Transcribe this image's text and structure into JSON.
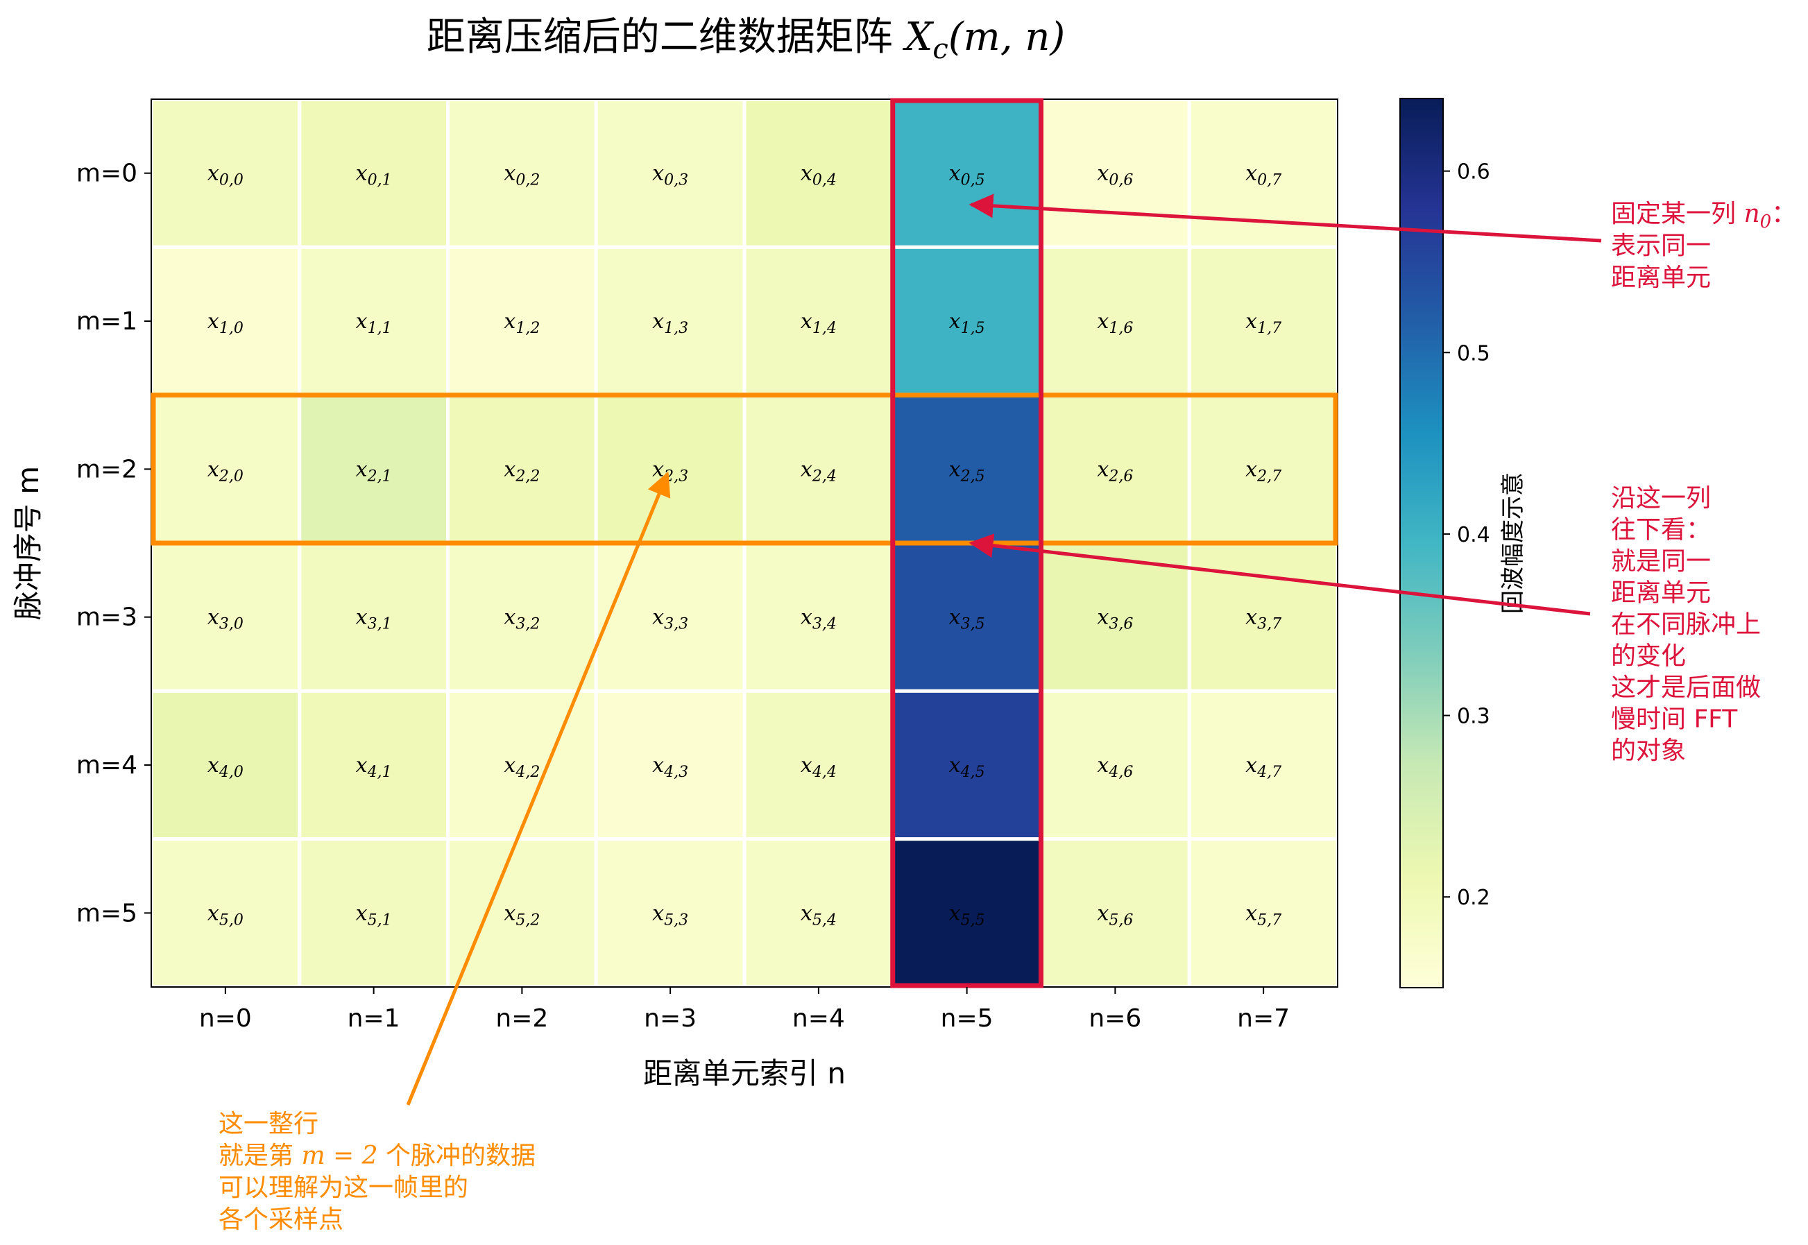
{
  "chart_data": {
    "type": "heatmap",
    "title_prefix": "距离压缩后的二维数据矩阵 ",
    "title_math": "X",
    "title_math_sub": "c",
    "title_math_suffix": "(m, n)",
    "xlabel": "距离单元索引 n",
    "ylabel": "脉冲序号 m",
    "x_categories": [
      "n=0",
      "n=1",
      "n=2",
      "n=3",
      "n=4",
      "n=5",
      "n=6",
      "n=7"
    ],
    "y_categories": [
      "m=0",
      "m=1",
      "m=2",
      "m=3",
      "m=4",
      "m=5"
    ],
    "cell_label_symbol": "x",
    "values": [
      [
        0.19,
        0.2,
        0.18,
        0.18,
        0.21,
        0.4,
        0.16,
        0.17
      ],
      [
        0.16,
        0.18,
        0.16,
        0.18,
        0.19,
        0.4,
        0.19,
        0.19
      ],
      [
        0.18,
        0.23,
        0.2,
        0.21,
        0.19,
        0.52,
        0.2,
        0.19
      ],
      [
        0.18,
        0.19,
        0.18,
        0.17,
        0.18,
        0.54,
        0.22,
        0.2
      ],
      [
        0.22,
        0.2,
        0.17,
        0.16,
        0.19,
        0.56,
        0.18,
        0.17
      ],
      [
        0.18,
        0.19,
        0.18,
        0.17,
        0.18,
        0.64,
        0.19,
        0.17
      ]
    ],
    "colorbar": {
      "label": "回波幅度示意",
      "range": [
        0.15,
        0.64
      ],
      "ticks": [
        0.2,
        0.3,
        0.4,
        0.5,
        0.6
      ],
      "tick_labels": [
        "0.2",
        "0.3",
        "0.4",
        "0.5",
        "0.6"
      ],
      "colormap": "YlGnBu"
    },
    "highlight_row": {
      "index": 2,
      "color": "#ff8c00"
    },
    "highlight_column": {
      "index": 5,
      "color": "#dc143c"
    },
    "annotations": {
      "column_top": {
        "line1_prefix": "固定某一列 ",
        "line1_math": "n",
        "line1_math_sub": "0",
        "line1_suffix": "：",
        "lines": [
          "表示同一",
          "距离单元"
        ],
        "color": "#dc143c"
      },
      "column_side": {
        "lines": [
          "沿这一列",
          "往下看：",
          "就是同一",
          "距离单元",
          "在不同脉冲上",
          "的变化",
          "这才是后面做",
          "慢时间 FFT",
          "的对象"
        ],
        "color": "#dc143c"
      },
      "row": {
        "line1": "这一整行",
        "line2_prefix": "就是第 ",
        "line2_math": "m = 2",
        "line2_suffix": " 个脉冲的数据",
        "lines": [
          "可以理解为这一帧里的",
          "各个采样点"
        ],
        "color": "#ff8c00"
      }
    }
  }
}
